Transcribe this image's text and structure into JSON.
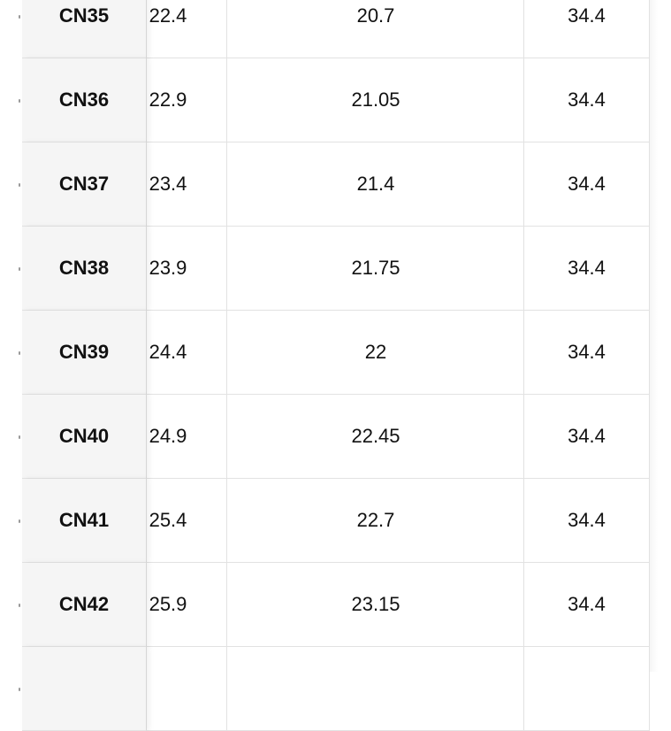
{
  "table": {
    "rows": [
      {
        "size": "CN35",
        "col2": "22.4",
        "col3": "20.7",
        "col4": "34.4"
      },
      {
        "size": "CN36",
        "col2": "22.9",
        "col3": "21.05",
        "col4": "34.4"
      },
      {
        "size": "CN37",
        "col2": "23.4",
        "col3": "21.4",
        "col4": "34.4"
      },
      {
        "size": "CN38",
        "col2": "23.9",
        "col3": "21.75",
        "col4": "34.4"
      },
      {
        "size": "CN39",
        "col2": "24.4",
        "col3": "22",
        "col4": "34.4"
      },
      {
        "size": "CN40",
        "col2": "24.9",
        "col3": "22.45",
        "col4": "34.4"
      },
      {
        "size": "CN41",
        "col2": "25.4",
        "col3": "22.7",
        "col4": "34.4"
      },
      {
        "size": "CN42",
        "col2": "25.9",
        "col3": "23.15",
        "col4": "34.4"
      },
      {
        "size": "",
        "col2": "",
        "col3": "",
        "col4": ""
      }
    ]
  }
}
